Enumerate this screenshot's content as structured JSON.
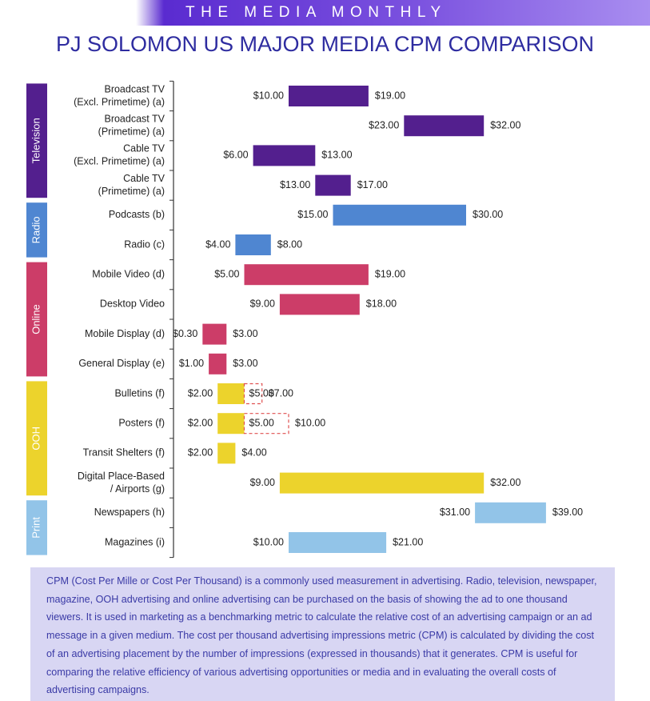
{
  "header": {
    "banner": "THE MEDIA MONTHLY"
  },
  "title": "PJ SOLOMON US MAJOR MEDIA CPM COMPARISON",
  "colors": {
    "Television": "#531f8e",
    "Radio": "#4f86d1",
    "Online": "#cc3d68",
    "OOH": "#ecd32c",
    "Print": "#92c4e8"
  },
  "chart_data": {
    "type": "bar",
    "subtype": "floating-range",
    "title": "PJ SOLOMON US MAJOR MEDIA CPM COMPARISON",
    "unit": "$",
    "groups": [
      {
        "name": "Television",
        "items": [
          {
            "label": [
              "Broadcast TV",
              "(Excl. Primetime) (a)"
            ],
            "low": 10.0,
            "high": 19.0,
            "low_label": "$10.00",
            "high_label": "$19.00"
          },
          {
            "label": [
              "Broadcast TV",
              "(Primetime) (a)"
            ],
            "low": 23.0,
            "high": 32.0,
            "low_label": "$23.00",
            "high_label": "$32.00"
          },
          {
            "label": [
              "Cable TV",
              "(Excl. Primetime) (a)"
            ],
            "low": 6.0,
            "high": 13.0,
            "low_label": "$6.00",
            "high_label": "$13.00"
          },
          {
            "label": [
              "Cable TV",
              "(Primetime) (a)"
            ],
            "low": 13.0,
            "high": 17.0,
            "low_label": "$13.00",
            "high_label": "$17.00"
          }
        ]
      },
      {
        "name": "Radio",
        "items": [
          {
            "label": [
              "Podcasts (b)"
            ],
            "low": 15.0,
            "high": 30.0,
            "low_label": "$15.00",
            "high_label": "$30.00"
          },
          {
            "label": [
              "Radio (c)"
            ],
            "low": 4.0,
            "high": 8.0,
            "low_label": "$4.00",
            "high_label": "$8.00"
          }
        ]
      },
      {
        "name": "Online",
        "items": [
          {
            "label": [
              "Mobile Video (d)"
            ],
            "low": 5.0,
            "high": 19.0,
            "low_label": "$5.00",
            "high_label": "$19.00"
          },
          {
            "label": [
              "Desktop Video"
            ],
            "low": 9.0,
            "high": 18.0,
            "low_label": "$9.00",
            "high_label": "$18.00"
          },
          {
            "label": [
              "Mobile Display (d)"
            ],
            "low": 0.3,
            "high": 3.0,
            "low_label": "$0.30",
            "high_label": "$3.00"
          },
          {
            "label": [
              "General Display (e)"
            ],
            "low": 1.0,
            "high": 3.0,
            "low_label": "$1.00",
            "high_label": "$3.00"
          }
        ]
      },
      {
        "name": "OOH",
        "items": [
          {
            "label": [
              "Bulletins (f)"
            ],
            "low": 2.0,
            "high": 5.0,
            "low_label": "$2.00",
            "high_label": "$5.00",
            "ext_high": 7.0,
            "ext_label": "$7.00"
          },
          {
            "label": [
              "Posters (f)"
            ],
            "low": 2.0,
            "high": 5.0,
            "low_label": "$2.00",
            "high_label": "$5.00",
            "ext_high": 10.0,
            "ext_label": "$10.00"
          },
          {
            "label": [
              "Transit Shelters (f)"
            ],
            "low": 2.0,
            "high": 4.0,
            "low_label": "$2.00",
            "high_label": "$4.00"
          },
          {
            "label": [
              "Digital Place-Based",
              "/ Airports (g)"
            ],
            "low": 9.0,
            "high": 32.0,
            "low_label": "$9.00",
            "high_label": "$32.00"
          }
        ]
      },
      {
        "name": "Print",
        "items": [
          {
            "label": [
              "Newspapers (h)"
            ],
            "low": 31.0,
            "high": 39.0,
            "low_label": "$31.00",
            "high_label": "$39.00"
          },
          {
            "label": [
              "Magazines (i)"
            ],
            "low": 10.0,
            "high": 21.0,
            "low_label": "$10.00",
            "high_label": "$21.00"
          }
        ]
      }
    ]
  },
  "description": "CPM (Cost Per Mille or Cost Per Thousand) is a commonly used measurement in advertising. Radio, television, newspaper, magazine, OOH advertising and online advertising can be purchased on the basis of showing the ad to one thousand viewers. It is used in marketing as a benchmarking metric to calculate the relative cost of an advertising campaign or an ad message in a given medium. The cost per thousand advertising impressions metric (CPM) is calculated by dividing the cost of an advertising placement by the number of impressions (expressed in thousands) that it generates. CPM is useful for comparing the relative efficiency of various advertising opportunities or media and in evaluating the overall costs of advertising campaigns."
}
